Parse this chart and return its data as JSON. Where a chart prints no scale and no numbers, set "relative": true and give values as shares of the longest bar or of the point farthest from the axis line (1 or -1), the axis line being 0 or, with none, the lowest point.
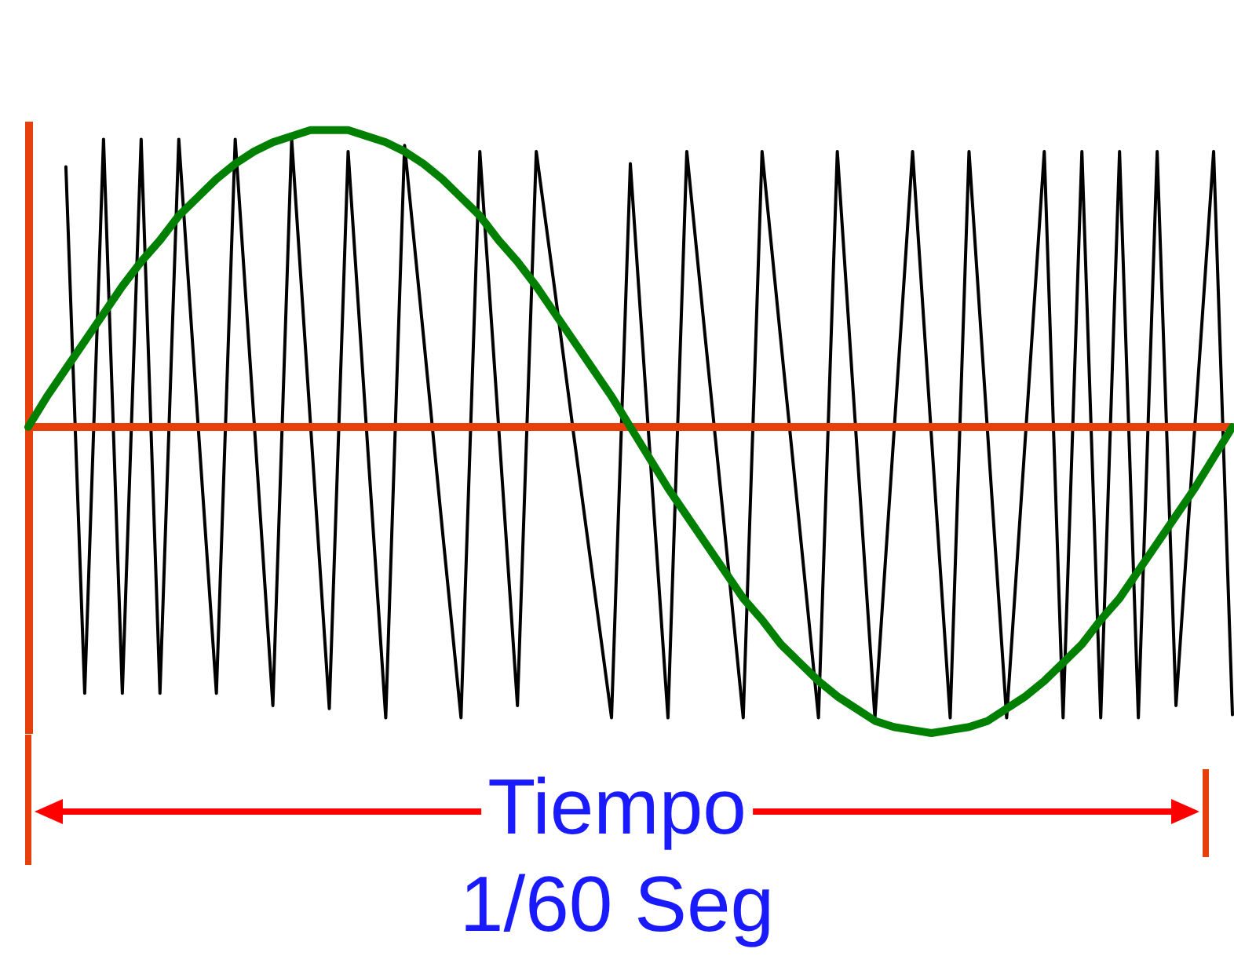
{
  "chart_data": {
    "type": "line",
    "relative": true,
    "tick_labels": false,
    "grid": false,
    "marker": "none",
    "line_style": "solid",
    "annotations": [
      "Tiempo",
      "1/60 Seg"
    ],
    "ref_lines": [
      {
        "axis": "y",
        "value": 0,
        "color": "#e8400c"
      }
    ],
    "categories": [
      null,
      null,
      null,
      null,
      null,
      null,
      null,
      null,
      null,
      null,
      null,
      null,
      null,
      null,
      null,
      null,
      null,
      null,
      null,
      null,
      null,
      null,
      null,
      null,
      null,
      null,
      null,
      null,
      null,
      null,
      null,
      null,
      null,
      null,
      null,
      null,
      null,
      null,
      null,
      null,
      null,
      null,
      null,
      null,
      null,
      null,
      null,
      null,
      null,
      null,
      null,
      null,
      null,
      null,
      null,
      null,
      null,
      null,
      null,
      null,
      null,
      null,
      null,
      null,
      null
    ],
    "series": [
      {
        "color": "#000000",
        "values": [
          null,
          null,
          0.85,
          -0.87,
          0.94,
          -0.87,
          0.94,
          -0.87,
          0.94,
          0.03,
          -0.87,
          0.94,
          0.02,
          -0.91,
          0.94,
          0.01,
          -0.92,
          0.9,
          -0.03,
          -0.95,
          0.92,
          0.3,
          -0.33,
          -0.95,
          0.9,
          0,
          -0.91,
          0.9,
          0.44,
          -0.03,
          -0.49,
          -0.95,
          0.86,
          -0.05,
          -0.95,
          0.9,
          0.28,
          -0.33,
          -0.95,
          0.9,
          0.28,
          -0.33,
          -0.95,
          0.9,
          -0.03,
          -0.95,
          -0.03,
          0.9,
          -0.03,
          -0.95,
          0.9,
          -0.03,
          -0.95,
          -0.03,
          0.9,
          -0.95,
          0.9,
          -0.95,
          0.9,
          -0.95,
          0.9,
          -0.91,
          0,
          0.9,
          -0.94
        ]
      },
      {
        "color": "#008000",
        "values": [
          0,
          0.1,
          0.19,
          0.28,
          0.37,
          0.46,
          0.54,
          0.61,
          0.69,
          0.75,
          0.81,
          0.86,
          0.9,
          0.93,
          0.95,
          0.97,
          0.97,
          0.97,
          0.95,
          0.93,
          0.9,
          0.86,
          0.81,
          0.75,
          0.69,
          0.61,
          0.54,
          0.46,
          0.37,
          0.28,
          0.19,
          0.1,
          0,
          -0.1,
          -0.2,
          -0.29,
          -0.38,
          -0.47,
          -0.56,
          -0.63,
          -0.71,
          -0.77,
          -0.83,
          -0.88,
          -0.92,
          -0.96,
          -0.98,
          -0.99,
          -1,
          -0.99,
          -0.98,
          -0.96,
          -0.92,
          -0.88,
          -0.83,
          -0.77,
          -0.71,
          -0.63,
          -0.56,
          -0.47,
          -0.38,
          -0.29,
          -0.2,
          -0.1,
          0
        ]
      }
    ]
  }
}
